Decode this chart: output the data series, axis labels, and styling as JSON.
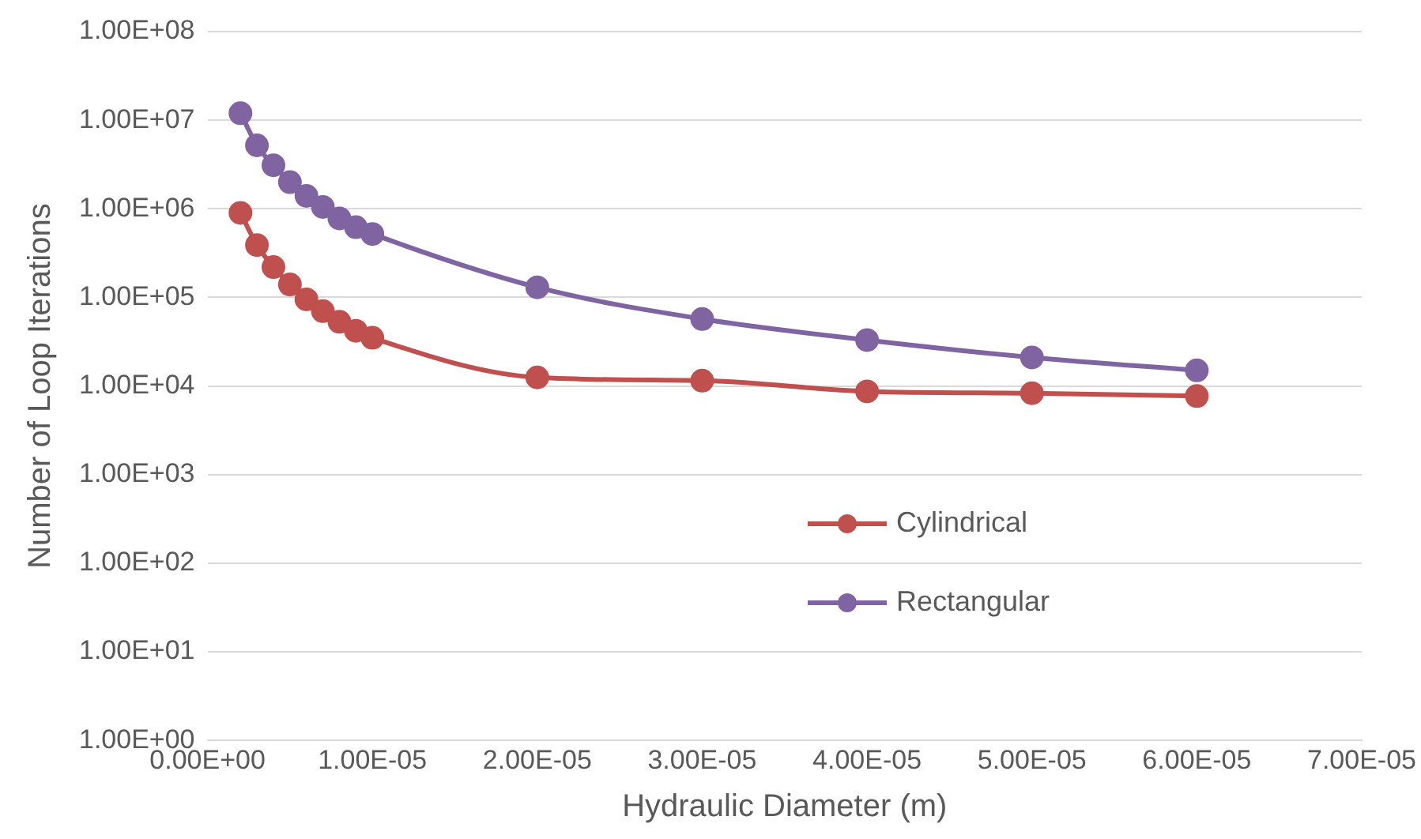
{
  "chart_data": {
    "type": "line",
    "xlabel": "Hydraulic Diameter (m)",
    "ylabel": "Number of Loop Iterations",
    "x": [
      2e-06,
      3e-06,
      4e-06,
      5e-06,
      6e-06,
      7e-06,
      8e-06,
      9e-06,
      1e-05,
      2e-05,
      3e-05,
      4e-05,
      5e-05,
      6e-05
    ],
    "series": [
      {
        "name": "Cylindrical",
        "color": "#c0504d",
        "values": [
          900000,
          390000,
          220000,
          140000,
          95000,
          70000,
          53000,
          42000,
          35000,
          12500,
          11500,
          8700,
          8300,
          7700
        ]
      },
      {
        "name": "Rectangular",
        "color": "#8064a2",
        "values": [
          12000000,
          5200000,
          3100000,
          2000000,
          1400000,
          1050000,
          780000,
          620000,
          520000,
          130000,
          57000,
          33000,
          21000,
          15000
        ]
      }
    ],
    "log": "y",
    "ylim": [
      1,
      100000000
    ],
    "yticks": [
      {
        "value": 1,
        "label": "1.00E+00"
      },
      {
        "value": 10,
        "label": "1.00E+01"
      },
      {
        "value": 100,
        "label": "1.00E+02"
      },
      {
        "value": 1000,
        "label": "1.00E+03"
      },
      {
        "value": 10000,
        "label": "1.00E+04"
      },
      {
        "value": 100000,
        "label": "1.00E+05"
      },
      {
        "value": 1000000,
        "label": "1.00E+06"
      },
      {
        "value": 10000000,
        "label": "1.00E+07"
      },
      {
        "value": 100000000,
        "label": "1.00E+08"
      }
    ],
    "xlim": [
      0,
      7e-05
    ],
    "xticks": [
      {
        "value": 0,
        "label": "0.00E+00"
      },
      {
        "value": 1e-05,
        "label": "1.00E-05"
      },
      {
        "value": 2e-05,
        "label": "2.00E-05"
      },
      {
        "value": 3e-05,
        "label": "3.00E-05"
      },
      {
        "value": 4e-05,
        "label": "4.00E-05"
      },
      {
        "value": 5e-05,
        "label": "5.00E-05"
      },
      {
        "value": 6e-05,
        "label": "6.00E-05"
      },
      {
        "value": 7e-05,
        "label": "7.00E-05"
      }
    ],
    "grid": "y",
    "legend": "bottom right",
    "marker": "circle",
    "line_style": "solid"
  }
}
